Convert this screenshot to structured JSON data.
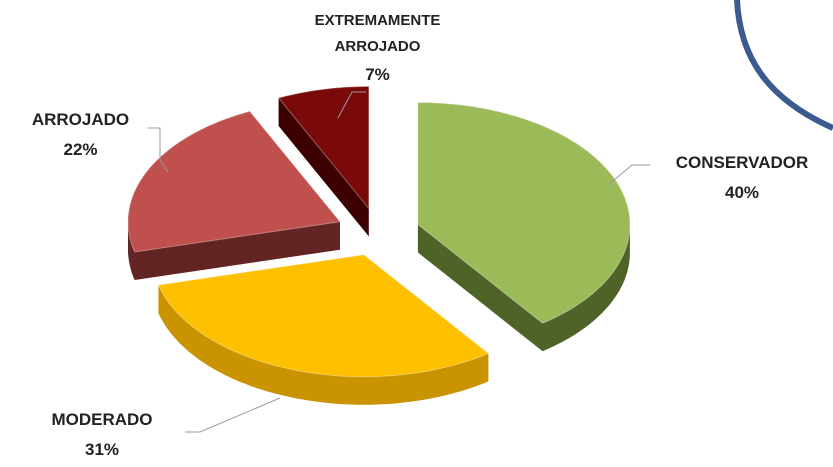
{
  "chart_data": {
    "type": "pie3d",
    "categories": [
      "CONSERVADOR",
      "MODERADO",
      "ARROJADO",
      "EXTREMAMENTE ARROJADO"
    ],
    "values": [
      40,
      31,
      22,
      7
    ],
    "value_labels": [
      "40%",
      "31%",
      "22%",
      "7%"
    ],
    "colors": [
      "#9bbb59",
      "#ffc000",
      "#c0504d",
      "#7a0a0a"
    ],
    "side_colors": [
      "#4f6228",
      "#c99400",
      "#632523",
      "#3d0000"
    ]
  }
}
